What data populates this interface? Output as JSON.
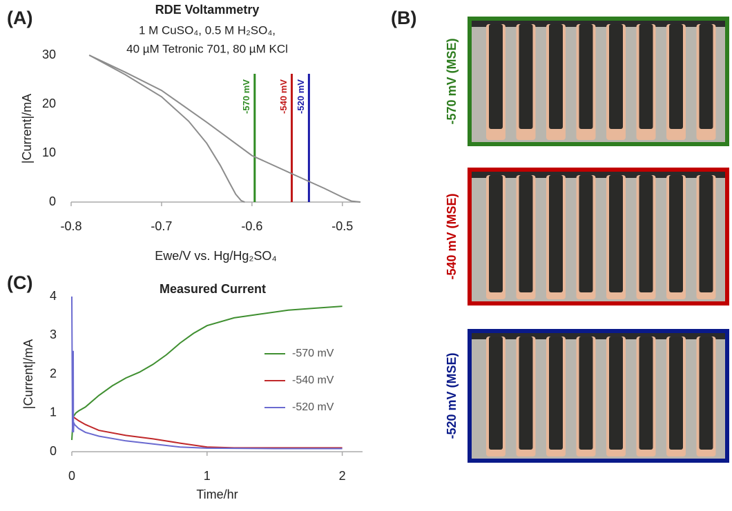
{
  "panels": {
    "a": "(A)",
    "b": "(B)",
    "c": "(C)"
  },
  "chart_data": [
    {
      "type": "line",
      "title": "RDE Voltammetry",
      "subtitle": [
        "1 M CuSO₄, 0.5 M H₂SO₄,",
        "40 µM Tetronic 701, 80 µM KCl"
      ],
      "x_label": "Ewe/V vs. Hg/Hg₂SO₄",
      "y_label": "|Current|/mA",
      "xlim": [
        -0.8,
        -0.48
      ],
      "xticks": [
        -0.8,
        -0.7,
        -0.6,
        -0.5
      ],
      "ylim": [
        0,
        30
      ],
      "yticks": [
        0,
        10,
        20,
        30
      ],
      "series": [
        {
          "color": "#8c8c8c",
          "x": [
            -0.78,
            -0.74,
            -0.7,
            -0.65,
            -0.6,
            -0.55,
            -0.52,
            -0.5,
            -0.49,
            -0.48
          ],
          "values": [
            30,
            26.5,
            22.8,
            16.3,
            9.5,
            5.3,
            2.8,
            1,
            0.2,
            0
          ]
        },
        {
          "color": "#8c8c8c",
          "x": [
            -0.78,
            -0.74,
            -0.7,
            -0.67,
            -0.65,
            -0.635,
            -0.625,
            -0.618,
            -0.612,
            -0.608
          ],
          "values": [
            30,
            26,
            21.5,
            16.5,
            12,
            7.5,
            4,
            1.6,
            0.3,
            0
          ]
        }
      ],
      "annotations": [
        {
          "x": -0.597,
          "top": 26.2,
          "label": "-570 mV",
          "color": "#2e8b22"
        },
        {
          "x": -0.556,
          "top": 26.2,
          "label": "-540 mV",
          "color": "#c01818"
        },
        {
          "x": -0.537,
          "top": 26.2,
          "label": "-520 mV",
          "color": "#1a1aa8"
        }
      ]
    },
    {
      "type": "line",
      "title": "Measured Current",
      "x_label": "Time/hr",
      "y_label": "|Current|/mA",
      "xlim": [
        0,
        2.15
      ],
      "xticks": [
        0,
        1,
        2
      ],
      "ylim": [
        0,
        4
      ],
      "yticks": [
        0,
        1,
        2,
        3,
        4
      ],
      "legend": "right",
      "series": [
        {
          "name": "-570 mV",
          "color": "#3f8f30",
          "x": [
            0,
            0.01,
            0.03,
            0.05,
            0.1,
            0.2,
            0.3,
            0.4,
            0.5,
            0.6,
            0.7,
            0.8,
            0.9,
            1.0,
            1.2,
            1.4,
            1.6,
            1.8,
            2.0
          ],
          "values": [
            0.3,
            0.9,
            1.0,
            1.05,
            1.15,
            1.45,
            1.7,
            1.9,
            2.05,
            2.25,
            2.5,
            2.8,
            3.05,
            3.25,
            3.45,
            3.55,
            3.65,
            3.7,
            3.75
          ]
        },
        {
          "name": "-540 mV",
          "color": "#c0282a",
          "x": [
            0.01,
            0.05,
            0.1,
            0.2,
            0.4,
            0.6,
            0.8,
            1.0,
            1.2,
            1.5,
            2.0
          ],
          "values": [
            0.9,
            0.8,
            0.7,
            0.55,
            0.42,
            0.33,
            0.22,
            0.12,
            0.1,
            0.1,
            0.1
          ]
        },
        {
          "name": "-520 mV",
          "color": "#6a6ad0",
          "x": [
            0,
            0.005,
            0.01,
            0.012,
            0.015,
            0.02,
            0.05,
            0.1,
            0.2,
            0.4,
            0.6,
            0.8,
            1.0,
            1.5,
            2.0
          ],
          "values": [
            4,
            0.5,
            2.6,
            0.5,
            0.75,
            0.7,
            0.6,
            0.5,
            0.4,
            0.28,
            0.2,
            0.12,
            0.09,
            0.08,
            0.08
          ]
        }
      ]
    }
  ],
  "micrographs": [
    {
      "label": "-570 mV (MSE)",
      "color": "#2e7d1f"
    },
    {
      "label": "-540 mV (MSE)",
      "color": "#c00000"
    },
    {
      "label": "-520 mV (MSE)",
      "color": "#0a1a8a"
    }
  ]
}
